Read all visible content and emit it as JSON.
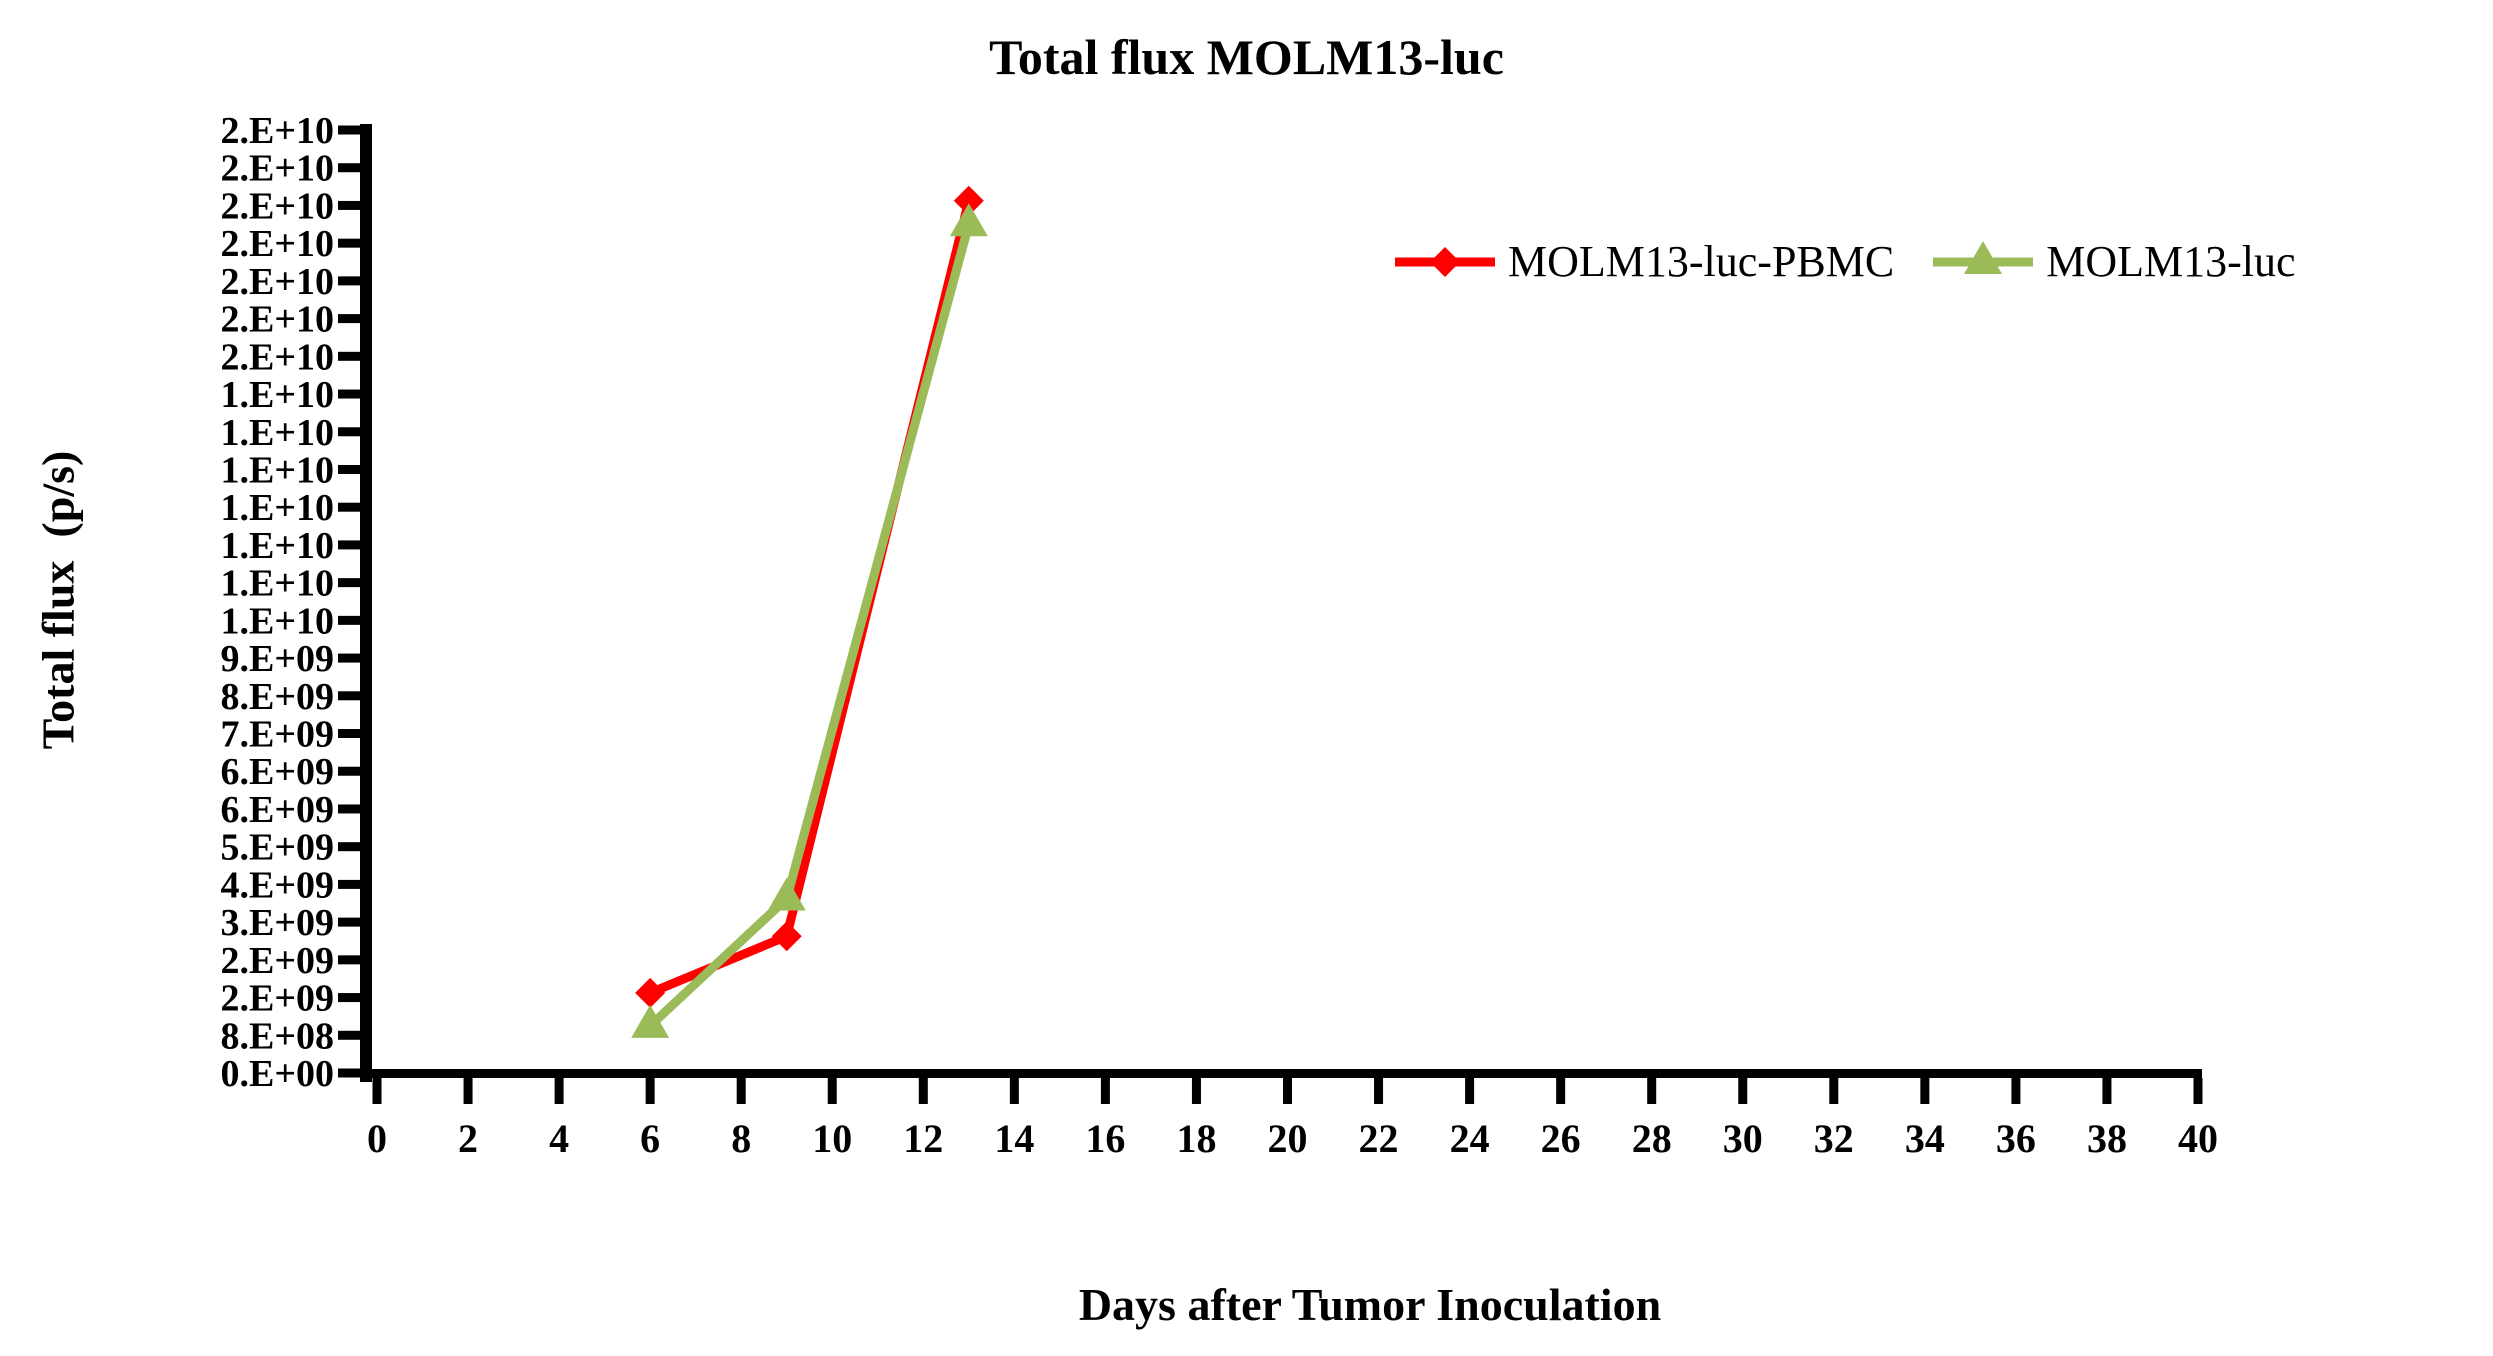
{
  "title": "Total flux MOLM13-luc",
  "x_axis": {
    "label": "Days after Tumor Inoculation",
    "min": 0,
    "max": 40,
    "tick_step": 2,
    "tick_labels": [
      "0",
      "2",
      "4",
      "6",
      "8",
      "10",
      "12",
      "14",
      "16",
      "18",
      "20",
      "22",
      "24",
      "26",
      "28",
      "30",
      "32",
      "34",
      "36",
      "38",
      "40"
    ]
  },
  "y_axis": {
    "label": "Total flux  (p/s)",
    "min": 0,
    "max": 20000000000.0,
    "tick_step": 800000000.0,
    "tick_labels": [
      "0.E+00",
      "8.E+08",
      "2.E+09",
      "2.E+09",
      "3.E+09",
      "4.E+09",
      "5.E+09",
      "6.E+09",
      "6.E+09",
      "7.E+09",
      "8.E+09",
      "9.E+09",
      "1.E+10",
      "1.E+10",
      "1.E+10",
      "1.E+10",
      "1.E+10",
      "1.E+10",
      "1.E+10",
      "2.E+10",
      "2.E+10",
      "2.E+10",
      "2.E+10",
      "2.E+10",
      "2.E+10",
      "2.E+10"
    ]
  },
  "legend": {
    "items": [
      "MOLM13-luc-PBMC",
      "MOLM13-luc"
    ]
  },
  "colors": {
    "series1": "#FF0000",
    "series2": "#9BBB59",
    "axis": "#000000",
    "background": "#FFFFFF"
  },
  "chart_data": {
    "type": "line",
    "title": "Total flux MOLM13-luc",
    "xlabel": "Days after Tumor Inoculation",
    "ylabel": "Total flux  (p/s)",
    "x": [
      6,
      9,
      13
    ],
    "series": [
      {
        "name": "MOLM13-luc-PBMC",
        "color": "#FF0000",
        "marker": "diamond",
        "values": [
          1700000000.0,
          2900000000.0,
          18500000000.0
        ]
      },
      {
        "name": "MOLM13-luc",
        "color": "#9BBB59",
        "marker": "triangle",
        "values": [
          1000000000.0,
          3700000000.0,
          18000000000.0
        ]
      }
    ],
    "xlim": [
      0,
      40
    ],
    "ylim": [
      0,
      20000000000.0
    ],
    "x_tick_interval": 2,
    "y_tick_interval": 800000000.0,
    "grid": false,
    "legend_position": "upper-right-inside"
  }
}
